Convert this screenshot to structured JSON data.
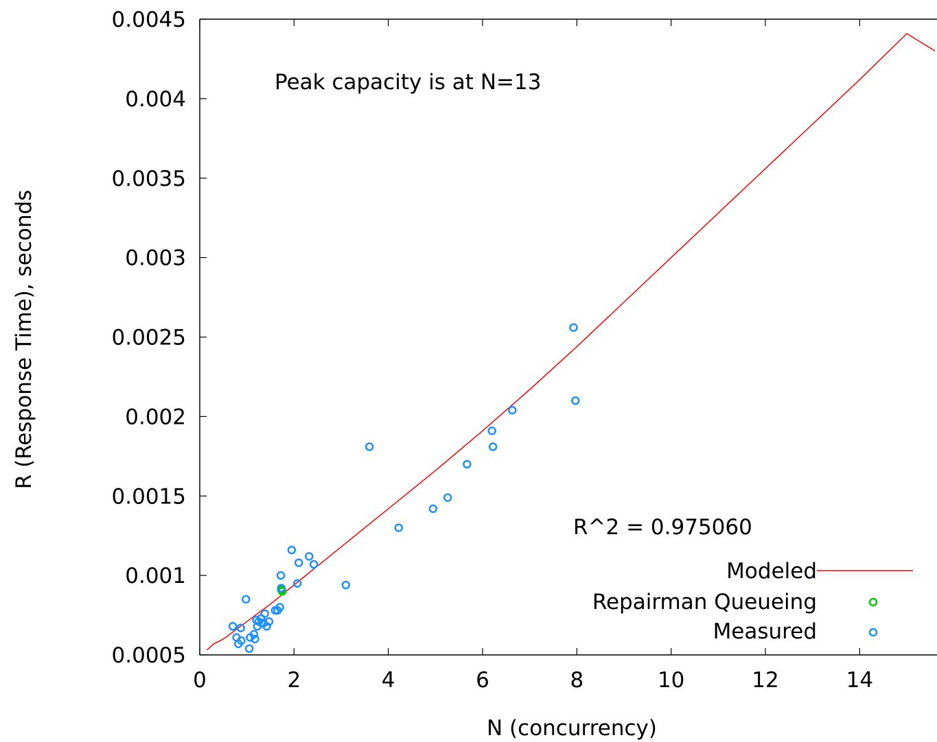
{
  "chart_data": {
    "type": "scatter",
    "xlabel": "N (concurrency)",
    "ylabel": "R (Response Time), seconds",
    "xlim": [
      0,
      15.6
    ],
    "ylim": [
      0.0005,
      0.0045
    ],
    "x_ticks": [
      0,
      2,
      4,
      6,
      8,
      10,
      12,
      14
    ],
    "y_ticks": [
      "0.0005",
      "0.001",
      "0.0015",
      "0.002",
      "0.0025",
      "0.003",
      "0.0035",
      "0.004",
      "0.0045"
    ],
    "grid": false,
    "legend_position": "bottom-right",
    "annotations": {
      "peak": "Peak capacity is at N=13",
      "r_squared": "R^2 = 0.975060"
    },
    "series": [
      {
        "name": "Modeled",
        "kind": "line",
        "color": "#ff0000",
        "x": [
          0.15,
          0.3,
          0.5,
          1.0,
          1.5,
          2.0,
          2.5,
          3.0,
          3.5,
          4.0,
          5.0,
          6.0,
          7.0,
          8.0,
          9.0,
          10.0,
          11.0,
          12.0,
          13.0,
          14.0,
          15.0,
          15.6
        ],
        "y": [
          0.00053,
          0.00057,
          0.0006,
          0.00071,
          0.00082,
          0.00094,
          0.00106,
          0.00118,
          0.0013,
          0.00142,
          0.00166,
          0.00191,
          0.00217,
          0.00244,
          0.00272,
          0.003,
          0.00328,
          0.00356,
          0.00384,
          0.00412,
          0.00441,
          0.0043
        ]
      },
      {
        "name": "Repairman Queueing",
        "kind": "points",
        "color": "#00cc00",
        "x": [
          1.73,
          1.75
        ],
        "y": [
          0.00091,
          0.0009
        ]
      },
      {
        "name": "Measured",
        "kind": "points",
        "color": "#1e90ff",
        "x": [
          0.7,
          0.78,
          0.82,
          0.87,
          0.88,
          0.98,
          1.05,
          1.07,
          1.15,
          1.17,
          1.2,
          1.22,
          1.25,
          1.3,
          1.32,
          1.35,
          1.38,
          1.42,
          1.47,
          1.6,
          1.65,
          1.7,
          1.72,
          1.73,
          1.95,
          2.07,
          2.1,
          2.32,
          2.42,
          3.1,
          3.6,
          4.22,
          4.95,
          5.26,
          5.67,
          6.2,
          6.22,
          6.63,
          7.93,
          7.97
        ],
        "y": [
          0.00068,
          0.00061,
          0.00057,
          0.00067,
          0.00059,
          0.00085,
          0.00054,
          0.00061,
          0.00063,
          0.0006,
          0.00072,
          0.00068,
          0.00071,
          0.00073,
          0.0007,
          0.0007,
          0.00076,
          0.00068,
          0.00071,
          0.00078,
          0.00078,
          0.0008,
          0.001,
          0.00092,
          0.00116,
          0.00095,
          0.00108,
          0.00112,
          0.00107,
          0.00094,
          0.00181,
          0.0013,
          0.00142,
          0.00149,
          0.0017,
          0.00191,
          0.00181,
          0.00204,
          0.00256,
          0.0021
        ]
      }
    ]
  }
}
